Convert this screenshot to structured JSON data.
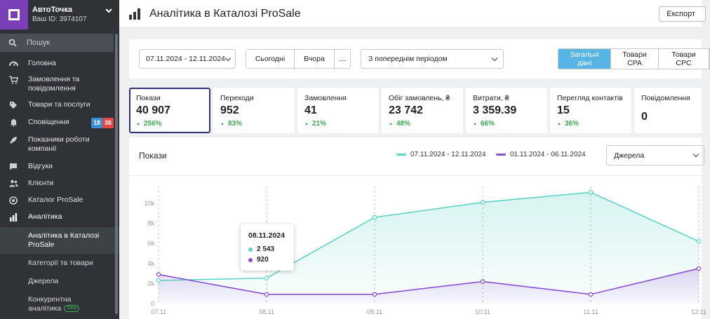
{
  "colors": {
    "accent_purple": "#7b3fb7",
    "teal": "#5fd3c6",
    "violet": "#8b4fd3",
    "tab_active": "#58b4e4",
    "badge_blue": "#3a8fd8",
    "badge_red": "#e64646",
    "positive": "#3fa552"
  },
  "sidebar": {
    "company_name": "АвтоТочка",
    "company_id": "Ваш ID: 3974107",
    "search_placeholder": "Пошук",
    "items": [
      {
        "label": "Головна",
        "icon": "dashboard-icon"
      },
      {
        "label": "Замовлення та повідомлення",
        "icon": "cart-icon"
      },
      {
        "label": "Товари та послуги",
        "icon": "tag-icon"
      },
      {
        "label": "Сповіщення",
        "icon": "bell-icon",
        "badges": [
          "18",
          "36"
        ]
      },
      {
        "label": "Показники роботи компанії",
        "icon": "rocket-icon"
      },
      {
        "label": "Відгуки",
        "icon": "comment-icon"
      },
      {
        "label": "Клієнти",
        "icon": "users-icon"
      },
      {
        "label": "Каталог ProSale",
        "icon": "target-icon"
      },
      {
        "label": "Аналітика",
        "icon": "bar-chart-icon"
      }
    ],
    "sub_items": [
      {
        "label": "Аналітика в Каталозі ProSale"
      },
      {
        "label": "Категорії та товари"
      },
      {
        "label": "Джерела"
      },
      {
        "label": "Конкурентна аналітика",
        "tag": "New"
      }
    ]
  },
  "header": {
    "title": "Аналітика в Каталозі ProSale",
    "export_label": "Експорт"
  },
  "filters": {
    "date_range": "07.11.2024 - 12.11.2024",
    "today": "Сьогодні",
    "yesterday": "Вчора",
    "more": "...",
    "compare": "З попереднім періодом",
    "tabs": [
      "Загальні дані",
      "Товари CPA",
      "Товари CPC"
    ]
  },
  "metrics": [
    {
      "label": "Покази",
      "value": "40 907",
      "change": "256%"
    },
    {
      "label": "Переходи",
      "value": "952",
      "change": "83%"
    },
    {
      "label": "Замовлення",
      "value": "41",
      "change": "21%"
    },
    {
      "label": "Обіг замовлень, ₴",
      "value": "23 742",
      "change": "48%"
    },
    {
      "label": "Витрати, ₴",
      "value": "3 359.39",
      "change": "66%"
    },
    {
      "label": "Перегляд контактів",
      "value": "15",
      "change": "36%"
    },
    {
      "label": "Повідомлення",
      "value": "0",
      "change": ""
    }
  ],
  "chart": {
    "title": "Покази",
    "source_select": "Джерела"
  },
  "chart_data": {
    "type": "area",
    "title": "Покази",
    "categories": [
      "07.11",
      "08.11",
      "09.11",
      "10.11",
      "11.11",
      "12.11"
    ],
    "series": [
      {
        "name": "07.11.2024 - 12.11.2024",
        "color": "#5fd3c6",
        "values": [
          2300,
          2543,
          8600,
          10100,
          11100,
          6200
        ]
      },
      {
        "name": "01.11.2024 - 06.11.2024",
        "color": "#8b4fd3",
        "values": [
          2900,
          920,
          920,
          2200,
          920,
          3500
        ]
      }
    ],
    "y_ticks": [
      "0",
      "2k",
      "4k",
      "6k",
      "8k",
      "10k"
    ],
    "ylim": [
      0,
      12000
    ],
    "tooltip": {
      "date": "08.11.2024",
      "values": [
        "2 543",
        "920"
      ]
    }
  }
}
